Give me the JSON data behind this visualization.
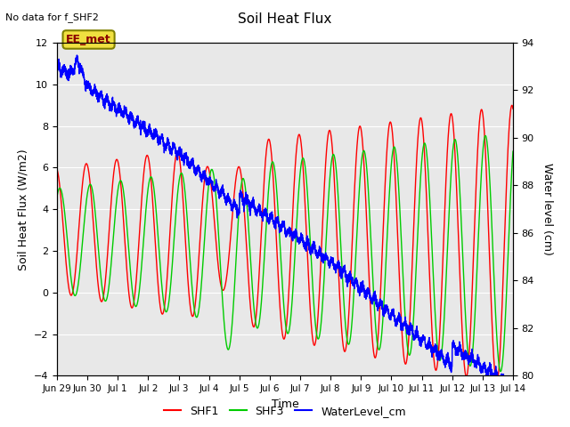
{
  "title": "Soil Heat Flux",
  "top_left_text": "No data for f_SHF2",
  "annotation_box": "EE_met",
  "xlabel": "Time",
  "ylabel_left": "Soil Heat Flux (W/m2)",
  "ylabel_right": "Water level (cm)",
  "ylim_left": [
    -4,
    12
  ],
  "ylim_right": [
    80,
    94
  ],
  "background_color": "#e8e8e8",
  "fig_background": "#ffffff",
  "grid_color": "#ffffff",
  "shf1_color": "#ff0000",
  "shf3_color": "#00cc00",
  "water_color": "#0000ff",
  "legend_labels": [
    "SHF1",
    "SHF3",
    "WaterLevel_cm"
  ],
  "x_tick_labels": [
    "Jun 29",
    "Jun 30",
    "Jul 1",
    "Jul 2",
    "Jul 3",
    "Jul 4",
    "Jul 5",
    "Jul 6",
    "Jul 7",
    "Jul 8",
    "Jul 9",
    "Jul 10",
    "Jul 11",
    "Jul 12",
    "Jul 13",
    "Jul 14"
  ],
  "x_tick_positions": [
    0,
    1,
    2,
    3,
    4,
    5,
    6,
    7,
    8,
    9,
    10,
    11,
    12,
    13,
    14,
    15
  ],
  "yticks_left": [
    -4,
    -2,
    0,
    2,
    4,
    6,
    8,
    10,
    12
  ],
  "yticks_right": [
    80,
    82,
    84,
    86,
    88,
    90,
    92,
    94
  ]
}
